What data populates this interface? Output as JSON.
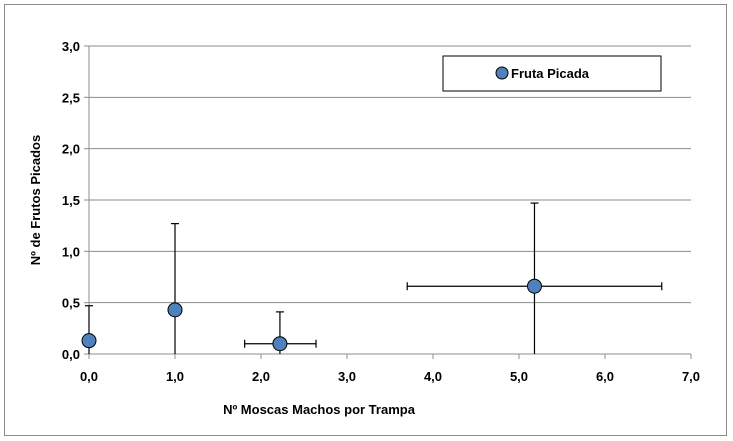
{
  "chart_data": {
    "type": "scatter",
    "xlabel": "Nº Moscas Machos  por Trampa",
    "ylabel": "Nº  de Frutos Picados",
    "xlim": [
      0,
      7
    ],
    "ylim": [
      0,
      3
    ],
    "x_ticks": [
      "0,0",
      "1,0",
      "2,0",
      "3,0",
      "4,0",
      "5,0",
      "6,0",
      "7,0"
    ],
    "y_ticks": [
      "0,0",
      "0,5",
      "1,0",
      "1,5",
      "2,0",
      "2,5",
      "3,0"
    ],
    "grid": "horizontal",
    "legend_position": "top-right",
    "series": [
      {
        "name": "Fruta Picada",
        "color": "#4f81bd",
        "points": [
          {
            "x": 0.0,
            "y": 0.13,
            "y_low": 0.0,
            "y_high": 0.47,
            "x_low": null,
            "x_high": null
          },
          {
            "x": 1.0,
            "y": 0.43,
            "y_low": 0.0,
            "y_high": 1.27,
            "x_low": null,
            "x_high": null
          },
          {
            "x": 2.22,
            "y": 0.1,
            "y_low": 0.0,
            "y_high": 0.41,
            "x_low": 1.81,
            "x_high": 2.64
          },
          {
            "x": 5.18,
            "y": 0.66,
            "y_low": 0.0,
            "y_high": 1.47,
            "x_low": 3.7,
            "x_high": 6.66
          }
        ]
      }
    ]
  }
}
